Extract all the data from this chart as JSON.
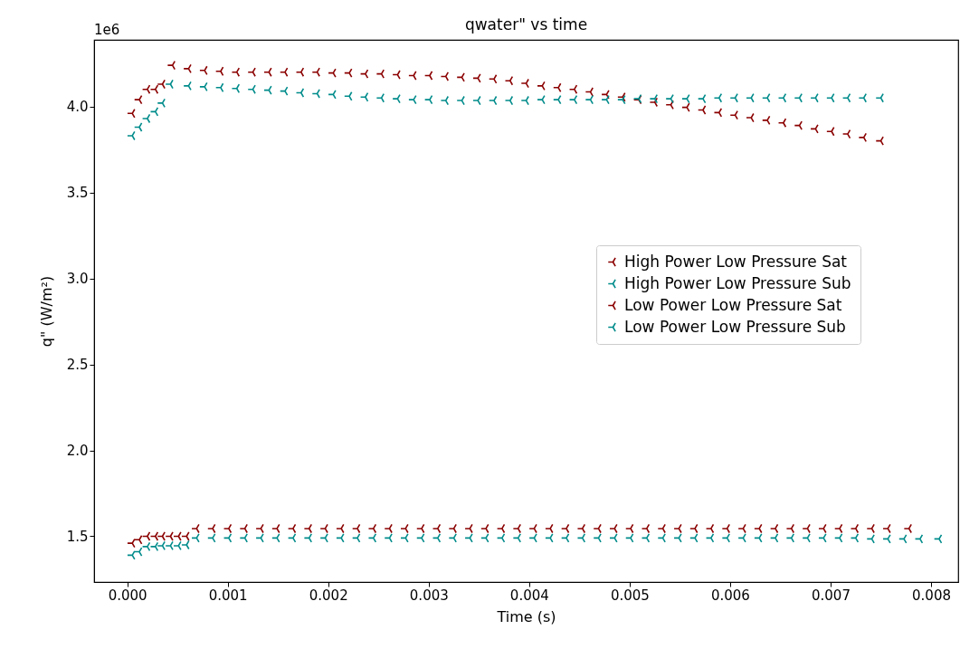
{
  "chart_data": {
    "type": "scatter",
    "title": "qwater\" vs time",
    "xlabel": "Time (s)",
    "ylabel": "q\" (W/m²)",
    "annotations": [
      "1e6"
    ],
    "xlim": [
      -0.00033,
      0.00827
    ],
    "ylim": [
      1.234,
      4.388
    ],
    "xticks": [
      {
        "value": 0,
        "label": "0.000"
      },
      {
        "value": 0.001,
        "label": "0.001"
      },
      {
        "value": 0.002,
        "label": "0.002"
      },
      {
        "value": 0.003,
        "label": "0.003"
      },
      {
        "value": 0.004,
        "label": "0.004"
      },
      {
        "value": 0.005,
        "label": "0.005"
      },
      {
        "value": 0.006,
        "label": "0.006"
      },
      {
        "value": 0.007,
        "label": "0.007"
      },
      {
        "value": 0.008,
        "label": "0.008"
      }
    ],
    "yticks": [
      1.5,
      {
        "value": 2,
        "label": "2.0"
      },
      2.5,
      {
        "value": 3,
        "label": "3.0"
      },
      3.5,
      {
        "value": 4,
        "label": "4.0"
      }
    ],
    "marker": "cross",
    "legend": "right",
    "grid": false,
    "series": [
      {
        "name": "High Power Low Pressure Sat",
        "color": "#8b0000",
        "x": [
          5e-05,
          0.00012,
          0.0002,
          0.00028,
          0.00035,
          0.00045,
          0.00061,
          0.00077,
          0.00093,
          0.00109,
          0.00125,
          0.00141,
          0.00157,
          0.00173,
          0.00189,
          0.00205,
          0.00221,
          0.00237,
          0.00253,
          0.00269,
          0.00285,
          0.00301,
          0.00317,
          0.00333,
          0.00349,
          0.00365,
          0.00381,
          0.00397,
          0.00413,
          0.00429,
          0.00445,
          0.00461,
          0.00477,
          0.00493,
          0.00509,
          0.00525,
          0.00541,
          0.00557,
          0.00573,
          0.00589,
          0.00605,
          0.00621,
          0.00637,
          0.00653,
          0.00669,
          0.00685,
          0.00701,
          0.00717,
          0.00733,
          0.0075
        ],
        "values": [
          3.96,
          4.04,
          4.1,
          4.1,
          4.13,
          4.24,
          4.22,
          4.21,
          4.205,
          4.2,
          4.2,
          4.2,
          4.2,
          4.2,
          4.2,
          4.195,
          4.195,
          4.19,
          4.19,
          4.185,
          4.18,
          4.18,
          4.175,
          4.17,
          4.165,
          4.16,
          4.15,
          4.135,
          4.12,
          4.11,
          4.1,
          4.085,
          4.07,
          4.055,
          4.04,
          4.025,
          4.01,
          3.995,
          3.98,
          3.965,
          3.95,
          3.935,
          3.92,
          3.905,
          3.89,
          3.87,
          3.855,
          3.84,
          3.82,
          3.8
        ]
      },
      {
        "name": "High Power Low Pressure Sub",
        "color": "#008b8b",
        "x": [
          5e-05,
          0.00012,
          0.0002,
          0.00028,
          0.00035,
          0.00043,
          0.00061,
          0.00077,
          0.00093,
          0.00109,
          0.00125,
          0.00141,
          0.00157,
          0.00173,
          0.00189,
          0.00205,
          0.00221,
          0.00237,
          0.00253,
          0.00269,
          0.00285,
          0.00301,
          0.00317,
          0.00333,
          0.00349,
          0.00365,
          0.00381,
          0.00397,
          0.00413,
          0.00429,
          0.00445,
          0.00461,
          0.00477,
          0.00493,
          0.00509,
          0.00525,
          0.00541,
          0.00557,
          0.00573,
          0.00589,
          0.00605,
          0.00621,
          0.00637,
          0.00653,
          0.00669,
          0.00685,
          0.00701,
          0.00717,
          0.00733,
          0.0075
        ],
        "values": [
          3.83,
          3.88,
          3.93,
          3.97,
          4.02,
          4.13,
          4.12,
          4.115,
          4.11,
          4.105,
          4.1,
          4.095,
          4.09,
          4.08,
          4.075,
          4.07,
          4.06,
          4.055,
          4.05,
          4.045,
          4.04,
          4.04,
          4.035,
          4.035,
          4.035,
          4.035,
          4.035,
          4.035,
          4.04,
          4.04,
          4.04,
          4.04,
          4.04,
          4.04,
          4.045,
          4.045,
          4.045,
          4.045,
          4.045,
          4.05,
          4.05,
          4.05,
          4.05,
          4.05,
          4.05,
          4.05,
          4.05,
          4.05,
          4.05,
          4.05
        ]
      },
      {
        "name": "Low Power Low Pressure Sat",
        "color": "#8b0000",
        "x": [
          5e-05,
          0.00012,
          0.0002,
          0.00028,
          0.00035,
          0.00043,
          0.00051,
          0.00059,
          0.00069,
          0.00085,
          0.00101,
          0.00117,
          0.00133,
          0.00149,
          0.00165,
          0.00181,
          0.00197,
          0.00213,
          0.00229,
          0.00245,
          0.00261,
          0.00277,
          0.00293,
          0.00309,
          0.00325,
          0.00341,
          0.00357,
          0.00373,
          0.00389,
          0.00405,
          0.00421,
          0.00437,
          0.00453,
          0.00469,
          0.00485,
          0.00501,
          0.00517,
          0.00533,
          0.00549,
          0.00565,
          0.00581,
          0.00597,
          0.00613,
          0.00629,
          0.00645,
          0.00661,
          0.00677,
          0.00693,
          0.00709,
          0.00725,
          0.00741,
          0.00757,
          0.00778
        ],
        "values": [
          1.46,
          1.48,
          1.5,
          1.5,
          1.5,
          1.5,
          1.5,
          1.5,
          1.545,
          1.545,
          1.545,
          1.545,
          1.545,
          1.545,
          1.545,
          1.545,
          1.545,
          1.545,
          1.545,
          1.545,
          1.545,
          1.545,
          1.545,
          1.545,
          1.545,
          1.545,
          1.545,
          1.545,
          1.545,
          1.545,
          1.545,
          1.545,
          1.545,
          1.545,
          1.545,
          1.545,
          1.545,
          1.545,
          1.545,
          1.545,
          1.545,
          1.545,
          1.545,
          1.545,
          1.545,
          1.545,
          1.545,
          1.545,
          1.545,
          1.545,
          1.545,
          1.545,
          1.545
        ]
      },
      {
        "name": "Low Power Low Pressure Sub",
        "color": "#008b8b",
        "x": [
          5e-05,
          0.00012,
          0.0002,
          0.00028,
          0.00035,
          0.00043,
          0.00051,
          0.00059,
          0.00069,
          0.00085,
          0.00101,
          0.00117,
          0.00133,
          0.00149,
          0.00165,
          0.00181,
          0.00197,
          0.00213,
          0.00229,
          0.00245,
          0.00261,
          0.00277,
          0.00293,
          0.00309,
          0.00325,
          0.00341,
          0.00357,
          0.00373,
          0.00389,
          0.00405,
          0.00421,
          0.00437,
          0.00453,
          0.00469,
          0.00485,
          0.00501,
          0.00517,
          0.00533,
          0.00549,
          0.00565,
          0.00581,
          0.00597,
          0.00613,
          0.00629,
          0.00645,
          0.00661,
          0.00677,
          0.00693,
          0.00709,
          0.00725,
          0.00741,
          0.00757,
          0.00773,
          0.00789,
          0.00808
        ],
        "values": [
          1.39,
          1.41,
          1.44,
          1.44,
          1.445,
          1.445,
          1.445,
          1.45,
          1.49,
          1.49,
          1.49,
          1.49,
          1.49,
          1.49,
          1.49,
          1.49,
          1.49,
          1.49,
          1.49,
          1.49,
          1.49,
          1.49,
          1.49,
          1.49,
          1.49,
          1.49,
          1.49,
          1.49,
          1.49,
          1.49,
          1.49,
          1.49,
          1.49,
          1.49,
          1.49,
          1.49,
          1.49,
          1.49,
          1.49,
          1.49,
          1.49,
          1.49,
          1.49,
          1.49,
          1.49,
          1.49,
          1.49,
          1.49,
          1.49,
          1.49,
          1.485,
          1.485,
          1.485,
          1.485,
          1.485
        ]
      }
    ]
  }
}
